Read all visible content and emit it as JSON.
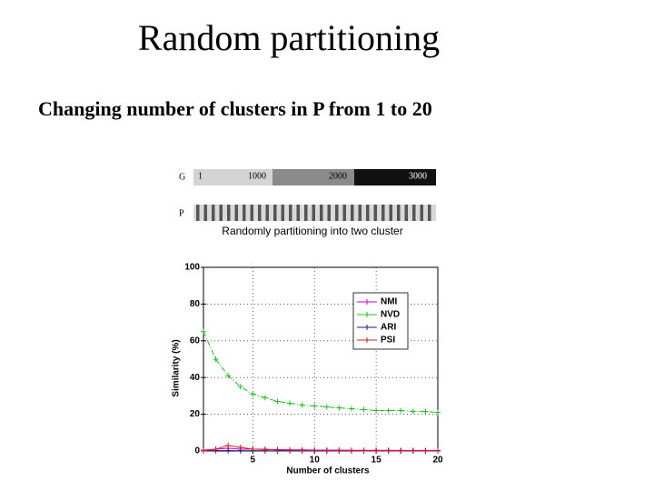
{
  "title": "Random partitioning",
  "subtitle": "Changing number of clusters in P from 1 to 20",
  "diagram": {
    "g_label": "G",
    "g_ticks": [
      "1",
      "1000",
      "2000",
      "3000"
    ],
    "p_label": "P",
    "caption": "Randomly partitioning into two cluster"
  },
  "chart_data": {
    "type": "line",
    "x_label": "Number of clusters",
    "y_label": "Similarity (%)",
    "x": [
      1,
      2,
      3,
      4,
      5,
      6,
      7,
      8,
      9,
      10,
      11,
      12,
      13,
      14,
      15,
      16,
      17,
      18,
      19,
      20
    ],
    "xlim": [
      1,
      20
    ],
    "xticks": [
      5,
      10,
      15,
      20
    ],
    "ylim": [
      0,
      100
    ],
    "yticks": [
      0,
      20,
      40,
      60,
      80,
      100
    ],
    "grid": true,
    "legend": "upper right",
    "series": [
      {
        "name": "NMI",
        "color": "#cc00cc",
        "values": [
          0.5,
          1,
          1.5,
          1,
          1,
          0.8,
          0.8,
          0.6,
          0.6,
          0.5,
          0.5,
          0.5,
          0.4,
          0.4,
          0.4,
          0.4,
          0.3,
          0.3,
          0.3,
          0.3
        ]
      },
      {
        "name": "NVD",
        "color": "#22bb22",
        "values": [
          65,
          50,
          41,
          35,
          31,
          29,
          27,
          26,
          25,
          24.5,
          24,
          23.5,
          23,
          22.5,
          22,
          22,
          22,
          21.5,
          21.5,
          21
        ]
      },
      {
        "name": "ARI",
        "color": "#1a1a80",
        "values": [
          0,
          0.2,
          0.2,
          0.1,
          0.1,
          0.1,
          0,
          0,
          0,
          0,
          0,
          0,
          0,
          0,
          0,
          0,
          0,
          0,
          0,
          0
        ]
      },
      {
        "name": "PSI",
        "color": "#cc2222",
        "values": [
          0,
          1,
          3,
          2,
          1,
          1,
          0.5,
          0.5,
          0.3,
          0.3,
          0.2,
          0.2,
          0.2,
          0.1,
          0.1,
          0.1,
          0.1,
          0.1,
          0.1,
          0.1
        ]
      }
    ]
  }
}
